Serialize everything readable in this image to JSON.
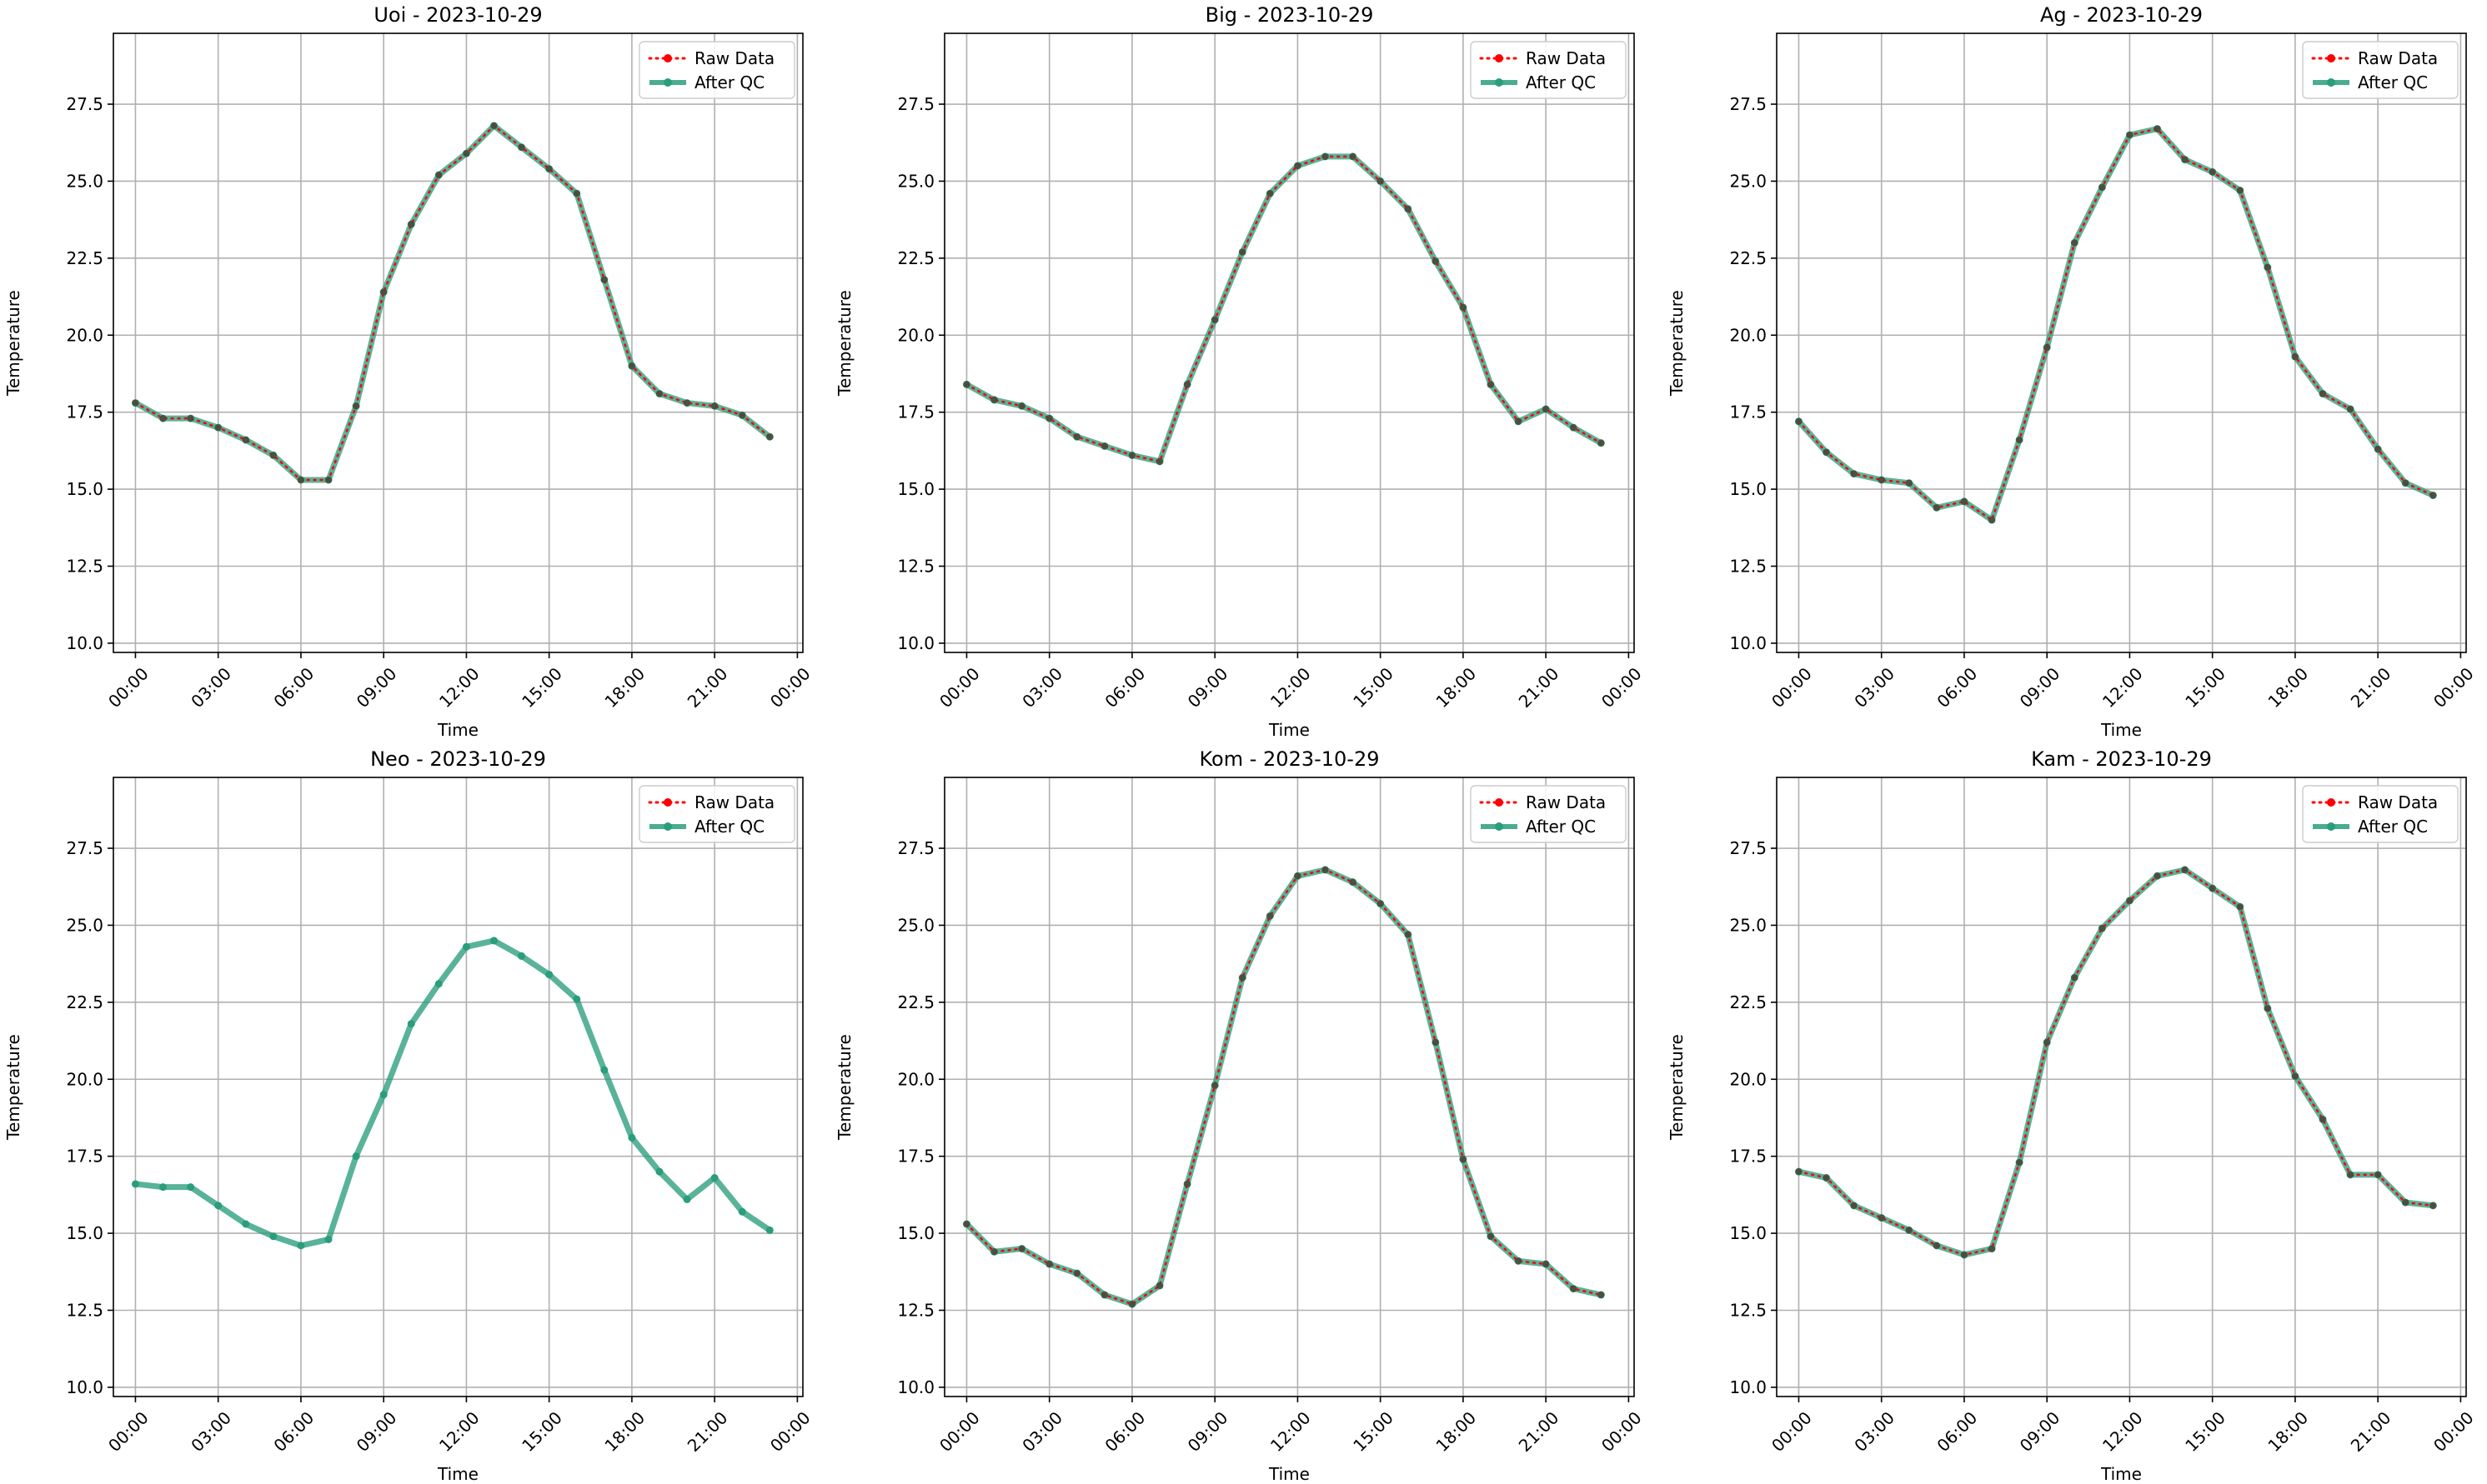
{
  "figure": {
    "colors": {
      "raw": "#ff0000",
      "qc": "#2a9d7c",
      "grid": "#b0b0b0",
      "axis": "#000000"
    }
  },
  "chart_data": [
    {
      "type": "line",
      "title": "Uoi - 2023-10-29",
      "xlabel": "Time",
      "ylabel": "Temperature",
      "x_tick_labels": [
        "00:00",
        "03:00",
        "06:00",
        "09:00",
        "12:00",
        "15:00",
        "18:00",
        "21:00",
        "00:00"
      ],
      "y_tick_labels": [
        "10.0",
        "12.5",
        "15.0",
        "17.5",
        "20.0",
        "22.5",
        "25.0",
        "27.5"
      ],
      "xlim_hours": [
        -0.8,
        24.2
      ],
      "ylim": [
        9.7,
        29.8
      ],
      "grid": true,
      "legend": "top-right",
      "x_hours": [
        0,
        1,
        2,
        3,
        4,
        5,
        6,
        7,
        8,
        9,
        10,
        11,
        12,
        13,
        14,
        15,
        16,
        17,
        18,
        19,
        20,
        21,
        22,
        23
      ],
      "series": [
        {
          "name": "Raw Data",
          "values": [
            17.8,
            17.3,
            17.3,
            17.0,
            16.6,
            16.1,
            15.3,
            15.3,
            17.7,
            21.4,
            23.6,
            25.2,
            25.9,
            26.8,
            26.1,
            25.4,
            24.6,
            21.8,
            19.0,
            18.1,
            17.8,
            17.7,
            17.4,
            16.7
          ]
        },
        {
          "name": "After QC",
          "values": [
            17.8,
            17.3,
            17.3,
            17.0,
            16.6,
            16.1,
            15.3,
            15.3,
            17.7,
            21.4,
            23.6,
            25.2,
            25.9,
            26.8,
            26.1,
            25.4,
            24.6,
            21.8,
            19.0,
            18.1,
            17.8,
            17.7,
            17.4,
            16.7
          ]
        }
      ]
    },
    {
      "type": "line",
      "title": "Big - 2023-10-29",
      "xlabel": "Time",
      "ylabel": "Temperature",
      "x_tick_labels": [
        "00:00",
        "03:00",
        "06:00",
        "09:00",
        "12:00",
        "15:00",
        "18:00",
        "21:00",
        "00:00"
      ],
      "y_tick_labels": [
        "10.0",
        "12.5",
        "15.0",
        "17.5",
        "20.0",
        "22.5",
        "25.0",
        "27.5"
      ],
      "xlim_hours": [
        -0.8,
        24.2
      ],
      "ylim": [
        9.7,
        29.8
      ],
      "grid": true,
      "legend": "top-right",
      "x_hours": [
        0,
        1,
        2,
        3,
        4,
        5,
        6,
        7,
        8,
        9,
        10,
        11,
        12,
        13,
        14,
        15,
        16,
        17,
        18,
        19,
        20,
        21,
        22,
        23
      ],
      "series": [
        {
          "name": "Raw Data",
          "values": [
            18.4,
            17.9,
            17.7,
            17.3,
            16.7,
            16.4,
            16.1,
            15.9,
            18.4,
            20.5,
            22.7,
            24.6,
            25.5,
            25.8,
            25.8,
            25.0,
            24.1,
            22.4,
            20.9,
            18.4,
            17.2,
            17.6,
            17.0,
            16.5
          ]
        },
        {
          "name": "After QC",
          "values": [
            18.4,
            17.9,
            17.7,
            17.3,
            16.7,
            16.4,
            16.1,
            15.9,
            18.4,
            20.5,
            22.7,
            24.6,
            25.5,
            25.8,
            25.8,
            25.0,
            24.1,
            22.4,
            20.9,
            18.4,
            17.2,
            17.6,
            17.0,
            16.5
          ]
        }
      ]
    },
    {
      "type": "line",
      "title": "Ag - 2023-10-29",
      "xlabel": "Time",
      "ylabel": "Temperature",
      "x_tick_labels": [
        "00:00",
        "03:00",
        "06:00",
        "09:00",
        "12:00",
        "15:00",
        "18:00",
        "21:00",
        "00:00"
      ],
      "y_tick_labels": [
        "10.0",
        "12.5",
        "15.0",
        "17.5",
        "20.0",
        "22.5",
        "25.0",
        "27.5"
      ],
      "xlim_hours": [
        -0.8,
        24.2
      ],
      "ylim": [
        9.7,
        29.8
      ],
      "grid": true,
      "legend": "top-right",
      "x_hours": [
        0,
        1,
        2,
        3,
        4,
        5,
        6,
        7,
        8,
        9,
        10,
        11,
        12,
        13,
        14,
        15,
        16,
        17,
        18,
        19,
        20,
        21,
        22,
        23
      ],
      "series": [
        {
          "name": "Raw Data",
          "values": [
            17.2,
            16.2,
            15.5,
            15.3,
            15.2,
            14.4,
            14.6,
            14.0,
            16.6,
            19.6,
            23.0,
            24.8,
            26.5,
            26.7,
            25.7,
            25.3,
            24.7,
            22.2,
            19.3,
            18.1,
            17.6,
            16.3,
            15.2,
            14.8
          ]
        },
        {
          "name": "After QC",
          "values": [
            17.2,
            16.2,
            15.5,
            15.3,
            15.2,
            14.4,
            14.6,
            14.0,
            16.6,
            19.6,
            23.0,
            24.8,
            26.5,
            26.7,
            25.7,
            25.3,
            24.7,
            22.2,
            19.3,
            18.1,
            17.6,
            16.3,
            15.2,
            14.8
          ]
        }
      ]
    },
    {
      "type": "line",
      "title": "Neo - 2023-10-29",
      "xlabel": "Time",
      "ylabel": "Temperature",
      "x_tick_labels": [
        "00:00",
        "03:00",
        "06:00",
        "09:00",
        "12:00",
        "15:00",
        "18:00",
        "21:00",
        "00:00"
      ],
      "y_tick_labels": [
        "10.0",
        "12.5",
        "15.0",
        "17.5",
        "20.0",
        "22.5",
        "25.0",
        "27.5"
      ],
      "xlim_hours": [
        -0.8,
        24.2
      ],
      "ylim": [
        9.7,
        29.8
      ],
      "grid": true,
      "legend": "top-right",
      "x_hours": [
        0,
        1,
        2,
        3,
        4,
        5,
        6,
        7,
        8,
        9,
        10,
        11,
        12,
        13,
        14,
        15,
        16,
        17,
        18,
        19,
        20,
        21,
        22,
        23
      ],
      "series": [
        {
          "name": "Raw Data",
          "values": []
        },
        {
          "name": "After QC",
          "values": [
            16.6,
            16.5,
            16.5,
            15.9,
            15.3,
            14.9,
            14.6,
            14.8,
            17.5,
            19.5,
            21.8,
            23.1,
            24.3,
            24.5,
            24.0,
            23.4,
            22.6,
            20.3,
            18.1,
            17.0,
            16.1,
            16.8,
            15.7,
            15.1
          ]
        }
      ]
    },
    {
      "type": "line",
      "title": "Kom - 2023-10-29",
      "xlabel": "Time",
      "ylabel": "Temperature",
      "x_tick_labels": [
        "00:00",
        "03:00",
        "06:00",
        "09:00",
        "12:00",
        "15:00",
        "18:00",
        "21:00",
        "00:00"
      ],
      "y_tick_labels": [
        "10.0",
        "12.5",
        "15.0",
        "17.5",
        "20.0",
        "22.5",
        "25.0",
        "27.5"
      ],
      "xlim_hours": [
        -0.8,
        24.2
      ],
      "ylim": [
        9.7,
        29.8
      ],
      "grid": true,
      "legend": "top-right",
      "x_hours": [
        0,
        1,
        2,
        3,
        4,
        5,
        6,
        7,
        8,
        9,
        10,
        11,
        12,
        13,
        14,
        15,
        16,
        17,
        18,
        19,
        20,
        21,
        22,
        23
      ],
      "series": [
        {
          "name": "Raw Data",
          "values": [
            15.3,
            14.4,
            14.5,
            14.0,
            13.7,
            13.0,
            12.7,
            13.3,
            16.6,
            19.8,
            23.3,
            25.3,
            26.6,
            26.8,
            26.4,
            25.7,
            24.7,
            21.2,
            17.4,
            14.9,
            14.1,
            14.0,
            13.2,
            13.0
          ]
        },
        {
          "name": "After QC",
          "values": [
            15.3,
            14.4,
            14.5,
            14.0,
            13.7,
            13.0,
            12.7,
            13.3,
            16.6,
            19.8,
            23.3,
            25.3,
            26.6,
            26.8,
            26.4,
            25.7,
            24.7,
            21.2,
            17.4,
            14.9,
            14.1,
            14.0,
            13.2,
            13.0
          ]
        }
      ]
    },
    {
      "type": "line",
      "title": "Kam - 2023-10-29",
      "xlabel": "Time",
      "ylabel": "Temperature",
      "x_tick_labels": [
        "00:00",
        "03:00",
        "06:00",
        "09:00",
        "12:00",
        "15:00",
        "18:00",
        "21:00",
        "00:00"
      ],
      "y_tick_labels": [
        "10.0",
        "12.5",
        "15.0",
        "17.5",
        "20.0",
        "22.5",
        "25.0",
        "27.5"
      ],
      "xlim_hours": [
        -0.8,
        24.2
      ],
      "ylim": [
        9.7,
        29.8
      ],
      "grid": true,
      "legend": "top-right",
      "x_hours": [
        0,
        1,
        2,
        3,
        4,
        5,
        6,
        7,
        8,
        9,
        10,
        11,
        12,
        13,
        14,
        15,
        16,
        17,
        18,
        19,
        20,
        21,
        22,
        23
      ],
      "series": [
        {
          "name": "Raw Data",
          "values": [
            17.0,
            16.8,
            15.9,
            15.5,
            15.1,
            14.6,
            14.3,
            14.5,
            17.3,
            21.2,
            23.3,
            24.9,
            25.8,
            26.6,
            26.8,
            26.2,
            25.6,
            22.3,
            20.1,
            18.7,
            16.9,
            16.9,
            16.0,
            15.9
          ]
        },
        {
          "name": "After QC",
          "values": [
            17.0,
            16.8,
            15.9,
            15.5,
            15.1,
            14.6,
            14.3,
            14.5,
            17.3,
            21.2,
            23.3,
            24.9,
            25.8,
            26.6,
            26.8,
            26.2,
            25.6,
            22.3,
            20.1,
            18.7,
            16.9,
            16.9,
            16.0,
            15.9
          ]
        }
      ]
    }
  ]
}
